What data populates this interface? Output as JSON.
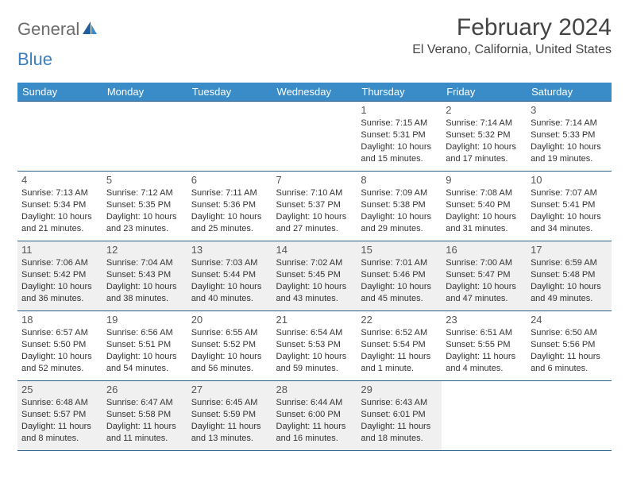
{
  "brand": {
    "part1": "General",
    "part2": "Blue"
  },
  "title": "February 2024",
  "location": "El Verano, California, United States",
  "colors": {
    "header_bg": "#3a8cc9",
    "header_text": "#ffffff",
    "border": "#2a5c8a",
    "shaded": "#f0f0f0",
    "brand_gray": "#6b6b6b",
    "brand_blue": "#3a7fbf"
  },
  "day_headers": [
    "Sunday",
    "Monday",
    "Tuesday",
    "Wednesday",
    "Thursday",
    "Friday",
    "Saturday"
  ],
  "weeks": [
    [
      {
        "n": "",
        "sr": "",
        "ss": "",
        "dl": ""
      },
      {
        "n": "",
        "sr": "",
        "ss": "",
        "dl": ""
      },
      {
        "n": "",
        "sr": "",
        "ss": "",
        "dl": ""
      },
      {
        "n": "",
        "sr": "",
        "ss": "",
        "dl": ""
      },
      {
        "n": "1",
        "sr": "Sunrise: 7:15 AM",
        "ss": "Sunset: 5:31 PM",
        "dl": "Daylight: 10 hours and 15 minutes."
      },
      {
        "n": "2",
        "sr": "Sunrise: 7:14 AM",
        "ss": "Sunset: 5:32 PM",
        "dl": "Daylight: 10 hours and 17 minutes."
      },
      {
        "n": "3",
        "sr": "Sunrise: 7:14 AM",
        "ss": "Sunset: 5:33 PM",
        "dl": "Daylight: 10 hours and 19 minutes."
      }
    ],
    [
      {
        "n": "4",
        "sr": "Sunrise: 7:13 AM",
        "ss": "Sunset: 5:34 PM",
        "dl": "Daylight: 10 hours and 21 minutes."
      },
      {
        "n": "5",
        "sr": "Sunrise: 7:12 AM",
        "ss": "Sunset: 5:35 PM",
        "dl": "Daylight: 10 hours and 23 minutes."
      },
      {
        "n": "6",
        "sr": "Sunrise: 7:11 AM",
        "ss": "Sunset: 5:36 PM",
        "dl": "Daylight: 10 hours and 25 minutes."
      },
      {
        "n": "7",
        "sr": "Sunrise: 7:10 AM",
        "ss": "Sunset: 5:37 PM",
        "dl": "Daylight: 10 hours and 27 minutes."
      },
      {
        "n": "8",
        "sr": "Sunrise: 7:09 AM",
        "ss": "Sunset: 5:38 PM",
        "dl": "Daylight: 10 hours and 29 minutes."
      },
      {
        "n": "9",
        "sr": "Sunrise: 7:08 AM",
        "ss": "Sunset: 5:40 PM",
        "dl": "Daylight: 10 hours and 31 minutes."
      },
      {
        "n": "10",
        "sr": "Sunrise: 7:07 AM",
        "ss": "Sunset: 5:41 PM",
        "dl": "Daylight: 10 hours and 34 minutes."
      }
    ],
    [
      {
        "n": "11",
        "sr": "Sunrise: 7:06 AM",
        "ss": "Sunset: 5:42 PM",
        "dl": "Daylight: 10 hours and 36 minutes."
      },
      {
        "n": "12",
        "sr": "Sunrise: 7:04 AM",
        "ss": "Sunset: 5:43 PM",
        "dl": "Daylight: 10 hours and 38 minutes."
      },
      {
        "n": "13",
        "sr": "Sunrise: 7:03 AM",
        "ss": "Sunset: 5:44 PM",
        "dl": "Daylight: 10 hours and 40 minutes."
      },
      {
        "n": "14",
        "sr": "Sunrise: 7:02 AM",
        "ss": "Sunset: 5:45 PM",
        "dl": "Daylight: 10 hours and 43 minutes."
      },
      {
        "n": "15",
        "sr": "Sunrise: 7:01 AM",
        "ss": "Sunset: 5:46 PM",
        "dl": "Daylight: 10 hours and 45 minutes."
      },
      {
        "n": "16",
        "sr": "Sunrise: 7:00 AM",
        "ss": "Sunset: 5:47 PM",
        "dl": "Daylight: 10 hours and 47 minutes."
      },
      {
        "n": "17",
        "sr": "Sunrise: 6:59 AM",
        "ss": "Sunset: 5:48 PM",
        "dl": "Daylight: 10 hours and 49 minutes."
      }
    ],
    [
      {
        "n": "18",
        "sr": "Sunrise: 6:57 AM",
        "ss": "Sunset: 5:50 PM",
        "dl": "Daylight: 10 hours and 52 minutes."
      },
      {
        "n": "19",
        "sr": "Sunrise: 6:56 AM",
        "ss": "Sunset: 5:51 PM",
        "dl": "Daylight: 10 hours and 54 minutes."
      },
      {
        "n": "20",
        "sr": "Sunrise: 6:55 AM",
        "ss": "Sunset: 5:52 PM",
        "dl": "Daylight: 10 hours and 56 minutes."
      },
      {
        "n": "21",
        "sr": "Sunrise: 6:54 AM",
        "ss": "Sunset: 5:53 PM",
        "dl": "Daylight: 10 hours and 59 minutes."
      },
      {
        "n": "22",
        "sr": "Sunrise: 6:52 AM",
        "ss": "Sunset: 5:54 PM",
        "dl": "Daylight: 11 hours and 1 minute."
      },
      {
        "n": "23",
        "sr": "Sunrise: 6:51 AM",
        "ss": "Sunset: 5:55 PM",
        "dl": "Daylight: 11 hours and 4 minutes."
      },
      {
        "n": "24",
        "sr": "Sunrise: 6:50 AM",
        "ss": "Sunset: 5:56 PM",
        "dl": "Daylight: 11 hours and 6 minutes."
      }
    ],
    [
      {
        "n": "25",
        "sr": "Sunrise: 6:48 AM",
        "ss": "Sunset: 5:57 PM",
        "dl": "Daylight: 11 hours and 8 minutes."
      },
      {
        "n": "26",
        "sr": "Sunrise: 6:47 AM",
        "ss": "Sunset: 5:58 PM",
        "dl": "Daylight: 11 hours and 11 minutes."
      },
      {
        "n": "27",
        "sr": "Sunrise: 6:45 AM",
        "ss": "Sunset: 5:59 PM",
        "dl": "Daylight: 11 hours and 13 minutes."
      },
      {
        "n": "28",
        "sr": "Sunrise: 6:44 AM",
        "ss": "Sunset: 6:00 PM",
        "dl": "Daylight: 11 hours and 16 minutes."
      },
      {
        "n": "29",
        "sr": "Sunrise: 6:43 AM",
        "ss": "Sunset: 6:01 PM",
        "dl": "Daylight: 11 hours and 18 minutes."
      },
      {
        "n": "",
        "sr": "",
        "ss": "",
        "dl": ""
      },
      {
        "n": "",
        "sr": "",
        "ss": "",
        "dl": ""
      }
    ]
  ],
  "shaded_weeks": [
    2,
    4
  ]
}
